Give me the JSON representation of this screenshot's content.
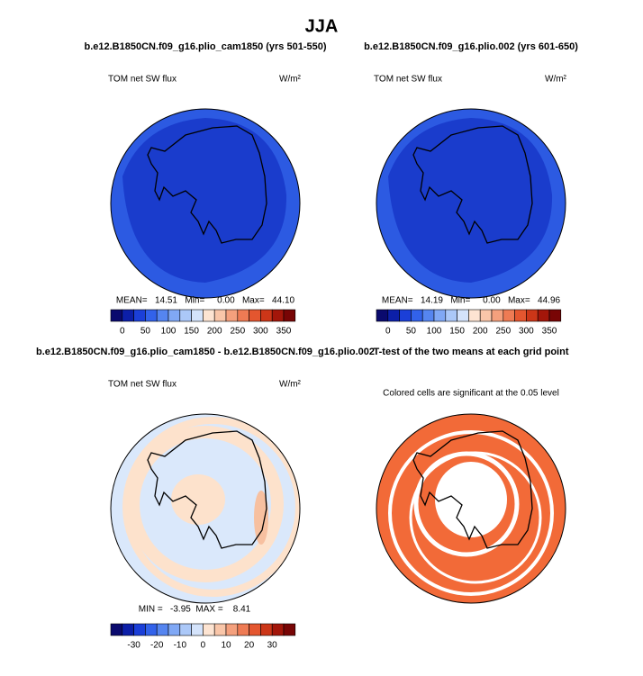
{
  "title": "JJA",
  "panels": [
    {
      "title": "b.e12.B1850CN.f09_g16.plio_cam1850 (yrs 501-550)",
      "left_string": "TOM net SW flux",
      "right_string": "W/m²",
      "stats": "MEAN=   14.51   Min=     0.00   Max=   44.10",
      "colorbar_labels": [
        "0",
        "50",
        "100",
        "150",
        "200",
        "250",
        "300",
        "350"
      ]
    },
    {
      "title": "b.e12.B1850CN.f09_g16.plio.002 (yrs 601-650)",
      "left_string": "TOM net SW flux",
      "right_string": "W/m²",
      "stats": "MEAN=   14.19   Min=     0.00   Max=   44.96",
      "colorbar_labels": [
        "0",
        "50",
        "100",
        "150",
        "200",
        "250",
        "300",
        "350"
      ]
    },
    {
      "title": "b.e12.B1850CN.f09_g16.plio_cam1850 - b.e12.B1850CN.f09_g16.plio.002",
      "left_string": "TOM net SW flux",
      "right_string": "W/m²",
      "stats": "MIN =   -3.95  MAX =    8.41",
      "colorbar_labels": [
        "-30",
        "-20",
        "-10",
        "0",
        "10",
        "20",
        "30"
      ]
    },
    {
      "title": "T-test of the two means at each grid point",
      "center_string": "Colored cells are significant at the 0.05 level"
    }
  ]
}
